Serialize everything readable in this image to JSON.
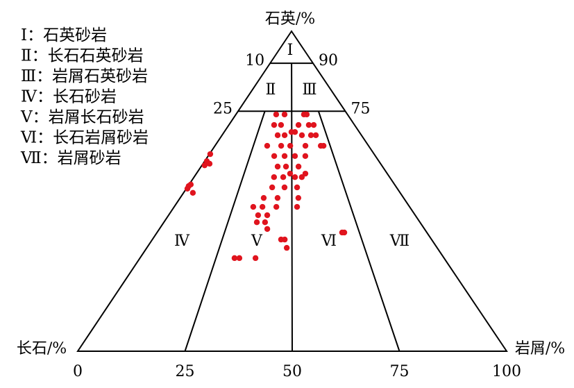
{
  "chart_data": {
    "type": "ternary",
    "title": "石英/%",
    "left_label": "长石/%",
    "right_label": "岩屑/%",
    "xlim": [
      0,
      100
    ],
    "xticks": [
      0,
      25,
      50,
      75,
      100
    ],
    "ylim": [
      0,
      100
    ],
    "qlines": [
      90,
      75
    ],
    "qline_labels": [
      [
        "10",
        "90"
      ],
      [
        "25",
        "75"
      ]
    ],
    "zones": [
      "Ⅰ",
      "Ⅱ",
      "Ⅲ",
      "Ⅳ",
      "Ⅴ",
      "Ⅵ",
      "Ⅶ"
    ],
    "legend": [
      "Ⅰ：石英砂岩",
      "Ⅱ：长石石英砂岩",
      "Ⅲ：岩屑石英砂岩",
      "Ⅳ：长石砂岩",
      "Ⅴ：岩屑长石砂岩",
      "Ⅵ：长石岩屑砂岩",
      "Ⅶ：岩屑砂岩"
    ],
    "color": "#e0141e",
    "x": [
      0.5,
      1.2,
      1.5,
      3.7,
      0.3,
      0.5,
      4.3,
      0.8,
      36.1,
      43.6,
      61.0,
      63.5,
      36.0,
      41.5,
      55.4,
      63.6,
      67.5,
      39.9,
      44.9,
      57.3,
      63.8,
      67.3,
      34.0,
      43.1,
      49.0,
      58.9,
      68.9,
      70.7,
      39.5,
      45.7,
      51.9,
      58.1,
      42.2,
      46.8,
      53.7,
      40.9,
      45.6,
      51.6,
      55.1,
      40.6,
      46.5,
      52.5,
      37.4,
      43.6,
      52.9,
      33.6,
      37.5,
      43.4,
      52.2,
      36.3,
      40.0,
      36.3,
      39.5,
      40.7,
      46.1,
      47.4,
      48.2,
      31.1,
      32.7,
      38.0,
      69.4,
      68.6,
      49.8,
      52.4,
      49.1,
      57.1
    ],
    "y": [
      61.6,
      59.4,
      58.1,
      58.6,
      51.6,
      50.8,
      49.5,
      52.1,
      74.0,
      74.0,
      74.0,
      74.0,
      70.7,
      70.7,
      70.7,
      70.7,
      70.7,
      67.5,
      67.5,
      67.5,
      67.5,
      67.5,
      64.2,
      64.2,
      64.2,
      64.2,
      64.2,
      64.2,
      61.0,
      61.0,
      61.0,
      61.0,
      57.7,
      57.7,
      57.7,
      54.4,
      54.4,
      54.4,
      54.4,
      51.2,
      51.2,
      51.2,
      47.9,
      47.9,
      47.9,
      45.1,
      45.1,
      45.1,
      45.1,
      42.5,
      42.5,
      40.3,
      40.3,
      38.2,
      34.9,
      34.9,
      32.3,
      29.1,
      29.1,
      29.1,
      37.1,
      37.1,
      68.5,
      68.5,
      55.5,
      55.5
    ]
  }
}
